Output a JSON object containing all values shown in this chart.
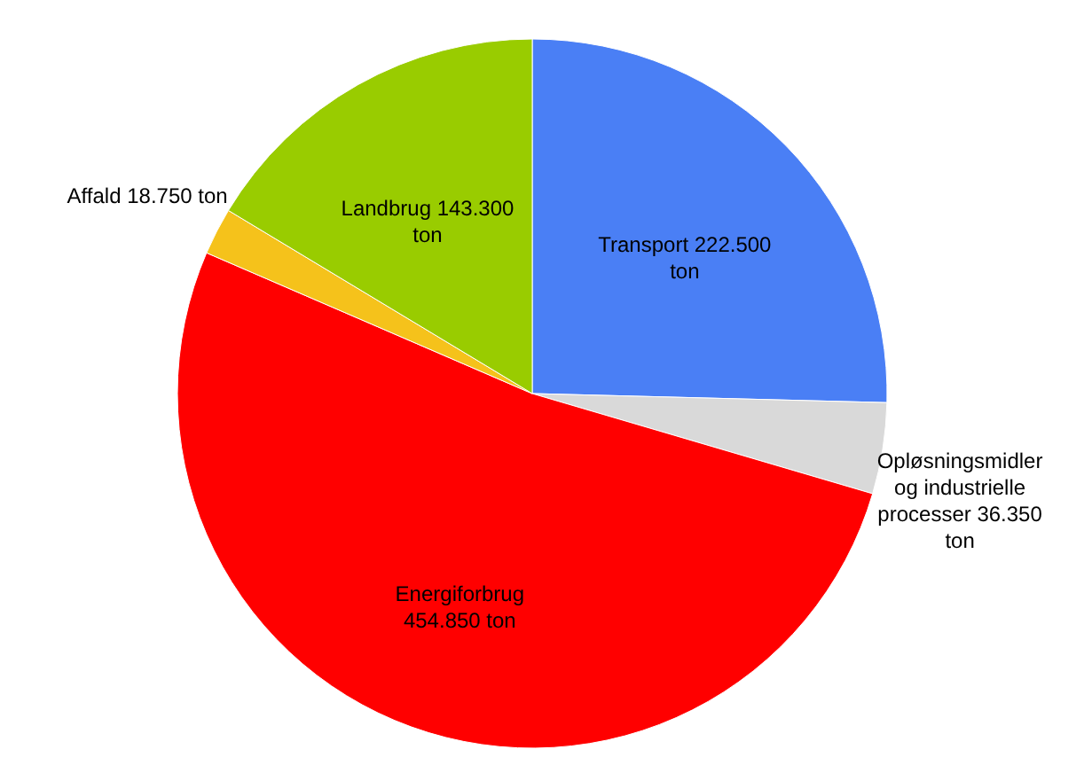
{
  "chart_data": {
    "type": "pie",
    "categories": [
      "Transport",
      "Opløsningsmidler og industrielle processer",
      "Energiforbrug",
      "Affald",
      "Landbrug"
    ],
    "values": [
      222500,
      36350,
      454850,
      18750,
      143300
    ],
    "value_labels": [
      "222.500 ton",
      "36.350 ton",
      "454.850 ton",
      "18.750 ton",
      "143.300 ton"
    ],
    "colors": [
      "#4a7ff5",
      "#d9d9d9",
      "#ff0000",
      "#f5c21b",
      "#99cc00"
    ]
  }
}
